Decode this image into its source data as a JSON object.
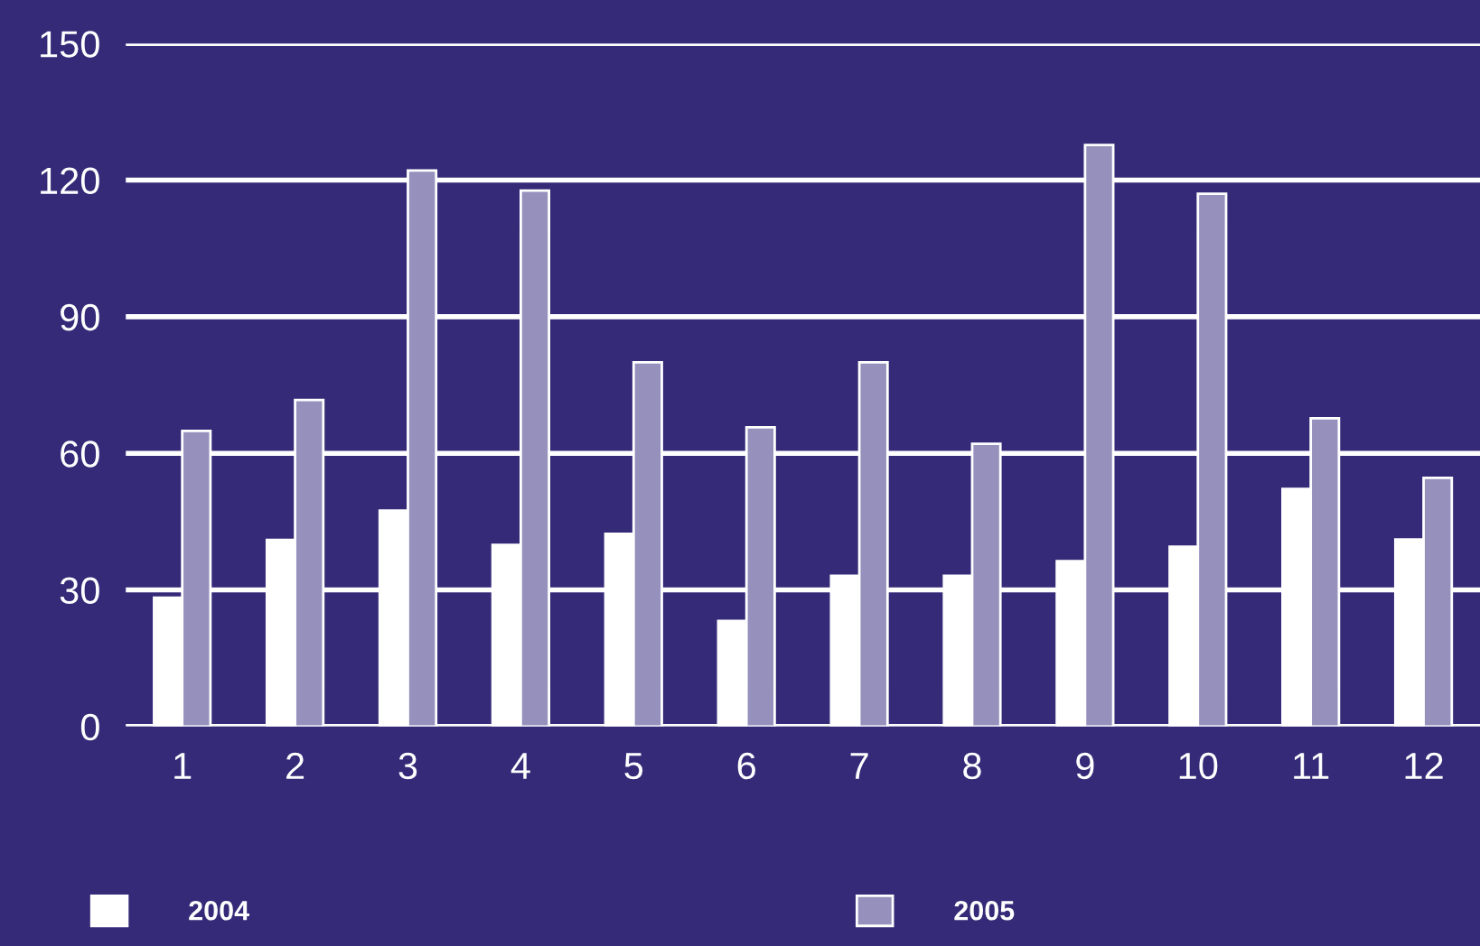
{
  "chart_data": {
    "type": "bar",
    "categories": [
      "1",
      "2",
      "3",
      "4",
      "5",
      "6",
      "7",
      "8",
      "9",
      "10",
      "11",
      "12"
    ],
    "series": [
      {
        "name": "2004",
        "color": "#ffffff",
        "values": [
          28.3,
          41,
          47.4,
          39.9,
          42.3,
          23.2,
          33.1,
          33.1,
          36.3,
          39.5,
          52.2,
          41.1
        ]
      },
      {
        "name": "2005",
        "color": "#9690bd",
        "values": [
          64.9,
          71.7,
          122.1,
          117.7,
          80,
          65.7,
          80,
          62.1,
          127.7,
          117,
          67.7,
          54.6
        ]
      }
    ],
    "ylim": [
      0,
      150
    ],
    "yticks": [
      0,
      30,
      60,
      90,
      120,
      150
    ],
    "grid": "y",
    "legend": "bottom"
  }
}
